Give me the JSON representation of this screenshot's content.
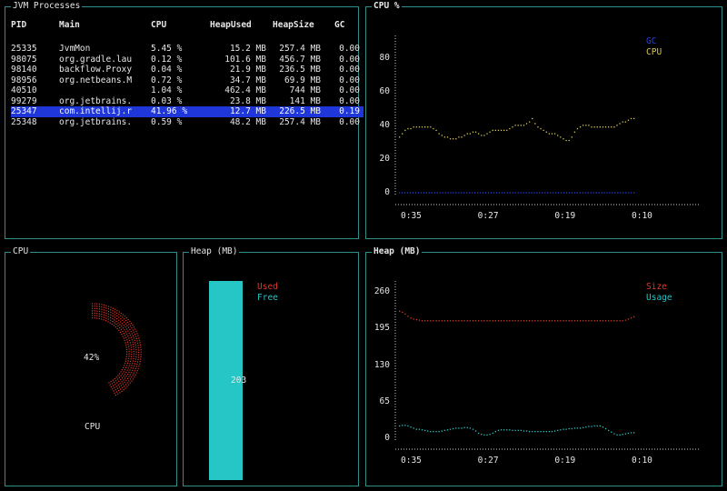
{
  "processes": {
    "title": "JVM Processes",
    "columns": [
      "PID",
      "Main",
      "CPU",
      "HeapUsed",
      "HeapSize",
      "GC"
    ],
    "rows": [
      {
        "pid": "25335",
        "main": "JvmMon",
        "cpu": "5.45 %",
        "heap_used": "15.2 MB",
        "heap_size": "257.4 MB",
        "gc": "0.00",
        "selected": false
      },
      {
        "pid": "98075",
        "main": "org.gradle.laun",
        "cpu": "0.12 %",
        "heap_used": "101.6 MB",
        "heap_size": "456.7 MB",
        "gc": "0.00",
        "selected": false
      },
      {
        "pid": "98140",
        "main": "backflow.ProxyS",
        "cpu": "0.04 %",
        "heap_used": "21.9 MB",
        "heap_size": "236.5 MB",
        "gc": "0.00",
        "selected": false
      },
      {
        "pid": "98956",
        "main": "org.netbeans.Ma",
        "cpu": "0.72 %",
        "heap_used": "34.7 MB",
        "heap_size": "69.9 MB",
        "gc": "0.00",
        "selected": false
      },
      {
        "pid": "40510",
        "main": "",
        "cpu": "1.04 %",
        "heap_used": "462.4 MB",
        "heap_size": "744 MB",
        "gc": "0.00",
        "selected": false
      },
      {
        "pid": "99279",
        "main": "org.jetbrains.i",
        "cpu": "0.03 %",
        "heap_used": "23.8 MB",
        "heap_size": "141 MB",
        "gc": "0.00",
        "selected": false
      },
      {
        "pid": "25347",
        "main": "com.intellij.rt",
        "cpu": "41.96 %",
        "heap_used": "12.7 MB",
        "heap_size": "226.5 MB",
        "gc": "0.19",
        "selected": true
      },
      {
        "pid": "25348",
        "main": "org.jetbrains.j",
        "cpu": "0.59 %",
        "heap_used": "48.2 MB",
        "heap_size": "257.4 MB",
        "gc": "0.00",
        "selected": false
      }
    ]
  },
  "colors": {
    "border": "#2f8f8f",
    "selected_row": "#1f36d8",
    "gc": "#2a3fe0",
    "cpu": "#d9c84a",
    "size": "#d83a2a",
    "usage": "#26c6c6",
    "axis": "#cfcfcf"
  },
  "chart_data": [
    {
      "type": "line",
      "title": "CPU %",
      "yticks": [
        "0",
        "20",
        "40",
        "60",
        "80"
      ],
      "ylim": [
        0,
        90
      ],
      "xticks": [
        "0:35",
        "0:27",
        "0:19",
        "0:10"
      ],
      "legend_position": "top-right",
      "series": [
        {
          "name": "GC",
          "color": "#2a3fe0",
          "values": [
            0,
            0,
            0,
            0,
            0,
            0,
            0,
            0,
            0,
            0,
            0,
            0,
            0,
            0,
            0,
            0,
            0,
            0,
            0,
            0,
            0,
            0,
            0,
            0,
            0,
            0,
            0,
            0,
            0,
            0,
            0,
            0,
            0,
            0,
            0,
            0,
            0,
            0,
            0,
            0,
            0,
            0,
            0,
            0,
            0,
            0,
            0,
            0,
            0,
            0,
            0,
            0,
            0,
            0,
            0,
            0,
            0,
            0,
            0,
            0,
            0,
            0,
            0,
            0,
            0,
            0,
            0,
            0,
            0,
            0,
            0,
            0,
            0,
            0,
            0,
            0,
            0,
            0,
            0,
            0,
            0,
            0,
            0,
            0,
            0,
            0,
            0,
            0
          ]
        },
        {
          "name": "CPU",
          "color": "#d9c84a",
          "values": [
            33,
            35,
            37,
            38,
            38,
            39,
            39,
            39,
            39,
            39,
            39,
            39,
            38,
            37,
            35,
            34,
            33,
            33,
            32,
            32,
            32,
            33,
            33,
            34,
            35,
            35,
            36,
            36,
            35,
            34,
            34,
            35,
            36,
            37,
            37,
            37,
            37,
            37,
            37,
            38,
            39,
            40,
            40,
            40,
            40,
            41,
            42,
            44,
            41,
            39,
            38,
            37,
            36,
            35,
            35,
            35,
            34,
            33,
            32,
            31,
            31,
            33,
            36,
            38,
            39,
            40,
            40,
            40,
            39,
            39,
            39,
            39,
            39,
            39,
            39,
            39,
            39,
            40,
            41,
            42,
            42,
            43,
            44,
            44
          ]
        }
      ]
    },
    {
      "type": "gauge",
      "title": "CPU",
      "value_percent": 42,
      "value_label": "42%",
      "caption": "CPU"
    },
    {
      "type": "bar",
      "title": "Heap (MB)",
      "series": [
        {
          "name": "Used",
          "color": "#d83a2a",
          "value": 0
        },
        {
          "name": "Free",
          "color": "#26c6c6",
          "value": 203
        }
      ],
      "bar_label": "203"
    },
    {
      "type": "line",
      "title": "Heap (MB)",
      "yticks": [
        "0",
        "65",
        "130",
        "195",
        "260"
      ],
      "ylim": [
        0,
        270
      ],
      "xticks": [
        "0:35",
        "0:27",
        "0:19",
        "0:10"
      ],
      "legend_position": "top-right",
      "series": [
        {
          "name": "Size",
          "color": "#d83a2a",
          "values": [
            226,
            224,
            221,
            217,
            214,
            212,
            211,
            210,
            209,
            209,
            209,
            209,
            209,
            209,
            209,
            209,
            209,
            209,
            209,
            209,
            209,
            209,
            209,
            209,
            209,
            209,
            209,
            209,
            209,
            209,
            209,
            209,
            209,
            209,
            209,
            209,
            209,
            209,
            209,
            209,
            209,
            209,
            209,
            209,
            209,
            209,
            209,
            209,
            209,
            209,
            209,
            209,
            209,
            209,
            209,
            209,
            209,
            209,
            209,
            209,
            209,
            209,
            209,
            209,
            209,
            209,
            209,
            209,
            209,
            209,
            209,
            209,
            209,
            209,
            209,
            209,
            209,
            209,
            209,
            209,
            210,
            212,
            214,
            216
          ]
        },
        {
          "name": "Usage",
          "color": "#26c6c6",
          "values": [
            22,
            23,
            23,
            22,
            20,
            18,
            16,
            16,
            15,
            14,
            13,
            12,
            12,
            12,
            12,
            13,
            14,
            15,
            16,
            17,
            18,
            18,
            18,
            19,
            19,
            18,
            16,
            13,
            9,
            7,
            6,
            6,
            7,
            9,
            12,
            14,
            15,
            15,
            15,
            15,
            14,
            14,
            14,
            14,
            13,
            13,
            12,
            12,
            12,
            12,
            12,
            12,
            12,
            12,
            12,
            13,
            14,
            15,
            16,
            16,
            17,
            17,
            18,
            18,
            18,
            19,
            20,
            21,
            21,
            22,
            22,
            22,
            20,
            17,
            14,
            11,
            8,
            6,
            6,
            7,
            8,
            9,
            10,
            10
          ]
        }
      ]
    }
  ]
}
